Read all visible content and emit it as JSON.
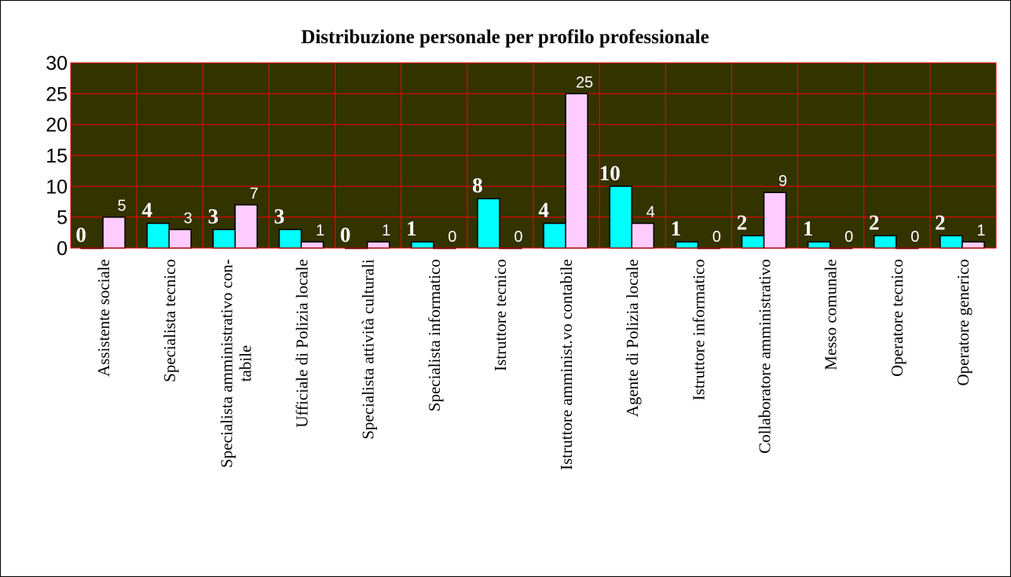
{
  "chart_data": {
    "type": "bar",
    "title": "Distribuzione personale per profilo professionale",
    "categories": [
      "Assistente sociale",
      "Specialista tecnico",
      "Specialista amministrativo con-\ntabile",
      "Ufficiale di Polizia locale",
      "Specialista attività culturali",
      "Specialista informatico",
      "Istruttore tecnico",
      "Istruttore amminist.vo contabile",
      "Agente di Polizia locale",
      "Istruttore informatico",
      "Collaboratore amministrativo",
      "Messo comunale",
      "Operatore tecnico",
      "Operatore generico"
    ],
    "series": [
      {
        "color": "#00ffff",
        "values": [
          0,
          4,
          3,
          3,
          0,
          1,
          8,
          4,
          10,
          1,
          2,
          1,
          2,
          2
        ]
      },
      {
        "color": "#ffccff",
        "values": [
          5,
          3,
          7,
          1,
          1,
          0,
          0,
          25,
          4,
          0,
          9,
          0,
          0,
          1
        ]
      }
    ],
    "ylim": [
      0,
      30
    ],
    "yticks": [
      0,
      5,
      10,
      15,
      20,
      25,
      30
    ],
    "grid": true,
    "plot_background": "#333300",
    "grid_color": "#ff0000"
  }
}
